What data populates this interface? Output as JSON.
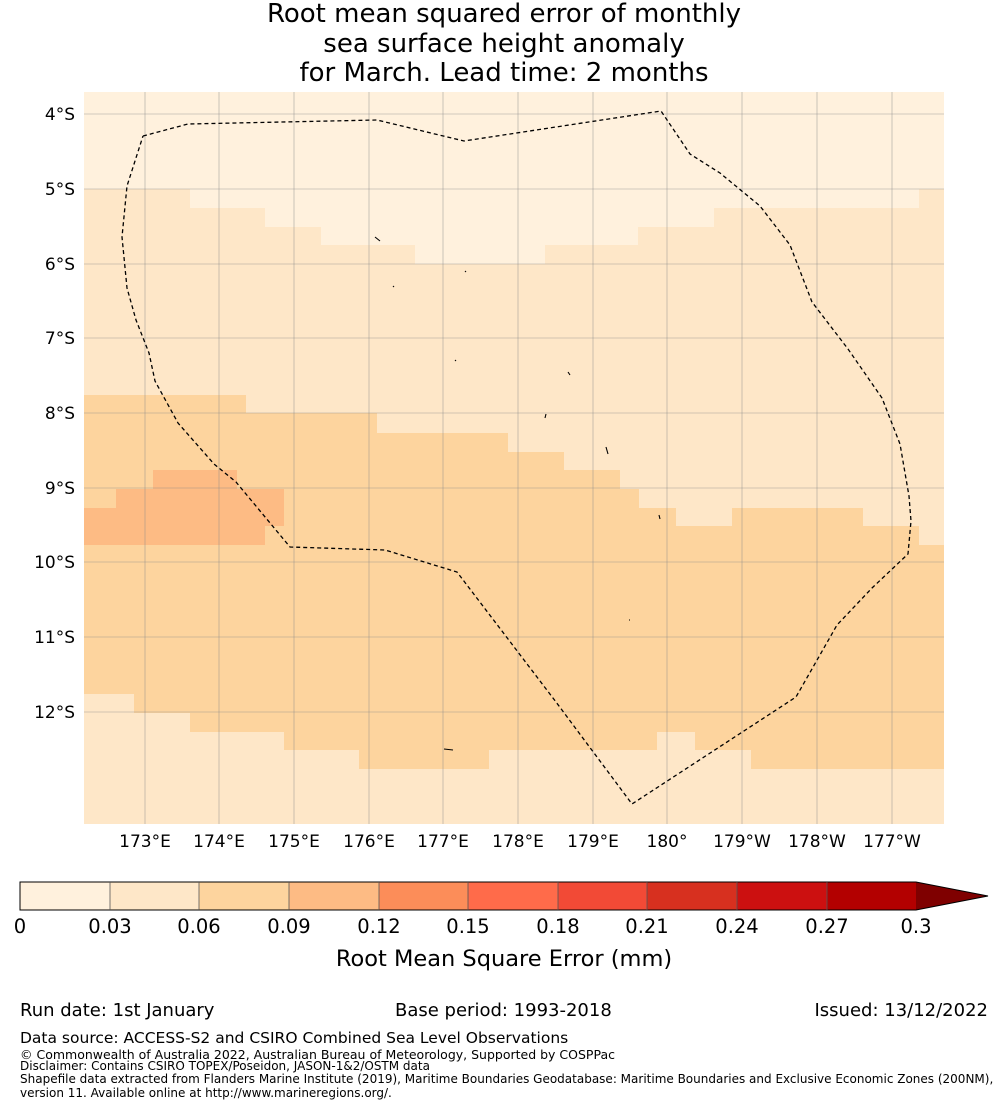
{
  "title_lines": [
    "Root mean squared error of monthly",
    "sea surface height anomaly",
    "for March. Lead time: 2 months"
  ],
  "map": {
    "lat_labels": [
      "4°S",
      "5°S",
      "6°S",
      "7°S",
      "8°S",
      "9°S",
      "10°S",
      "11°S",
      "12°S"
    ],
    "lon_labels": [
      "173°E",
      "174°E",
      "175°E",
      "176°E",
      "177°E",
      "178°E",
      "179°E",
      "180°",
      "179°W",
      "178°W",
      "177°W"
    ]
  },
  "colorbar": {
    "ticks": [
      "0",
      "0.03",
      "0.06",
      "0.09",
      "0.12",
      "0.15",
      "0.18",
      "0.21",
      "0.24",
      "0.27",
      "0.3"
    ],
    "colors": [
      "#fff1dd",
      "#fee7c8",
      "#fdd49e",
      "#fdbb84",
      "#fc8d59",
      "#ff6b4a",
      "#f24a36",
      "#d7301f",
      "#cc1010",
      "#b30000",
      "#7f0000"
    ],
    "label": "Root Mean Square Error (mm)"
  },
  "footer": {
    "run_date": "Run date: 1st January",
    "base_period": "Base period: 1993-2018",
    "issued": "Issued: 13/12/2022",
    "data_source": "Data source: ACCESS-S2 and CSIRO Combined Sea Level Observations",
    "copyright": "© Commonwealth of Australia 2022, Australian Bureau of Meteorology, Supported by COSPPac",
    "disclaimer": "Disclaimer: Contains CSIRO TOPEX/Poseidon, JASON-1&2/OSTM data",
    "shapefile_1": "Shapefile data extracted from Flanders Marine Institute (2019), Maritime Boundaries Geodatabase: Maritime Boundaries and Exclusive Economic Zones (200NM),",
    "shapefile_2": "version 11. Available online at http://www.marineregions.org/."
  }
}
